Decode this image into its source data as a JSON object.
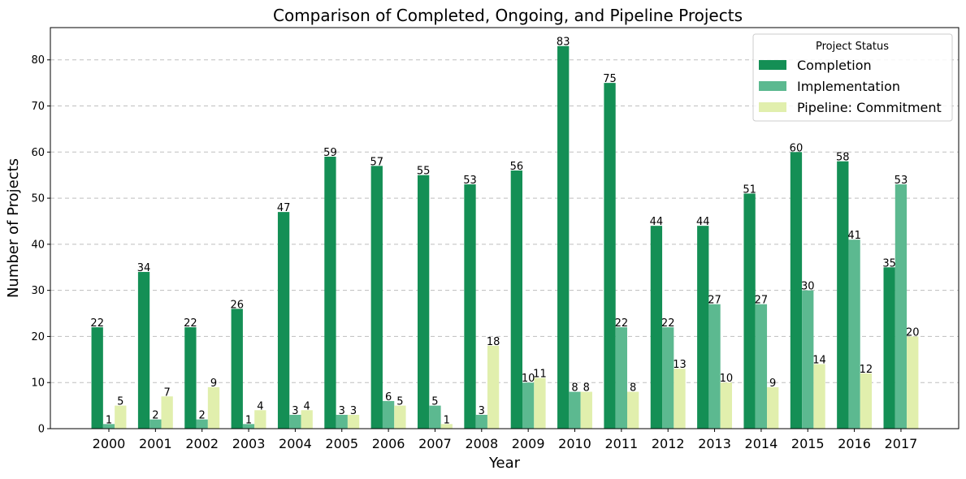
{
  "chart_data": {
    "type": "bar",
    "title": "Comparison of Completed, Ongoing, and Pipeline Projects",
    "xlabel": "Year",
    "ylabel": "Number of Projects",
    "categories": [
      "2000",
      "2001",
      "2002",
      "2003",
      "2004",
      "2005",
      "2006",
      "2007",
      "2008",
      "2009",
      "2010",
      "2011",
      "2012",
      "2013",
      "2014",
      "2015",
      "2016",
      "2017"
    ],
    "series": [
      {
        "name": "Completion",
        "color": "#148f55",
        "values": [
          22,
          34,
          22,
          26,
          47,
          59,
          57,
          55,
          53,
          56,
          83,
          75,
          44,
          44,
          51,
          60,
          58,
          35
        ]
      },
      {
        "name": "Implementation",
        "color": "#5cb990",
        "values": [
          1,
          2,
          2,
          1,
          3,
          3,
          6,
          5,
          3,
          10,
          8,
          22,
          22,
          27,
          27,
          30,
          41,
          53
        ]
      },
      {
        "name": "Pipeline: Commitment",
        "color": "#e1efad",
        "values": [
          5,
          7,
          9,
          4,
          4,
          3,
          5,
          1,
          18,
          11,
          8,
          8,
          13,
          10,
          9,
          14,
          12,
          20
        ]
      }
    ],
    "ylim": [
      0,
      87
    ],
    "yticks": [
      0,
      10,
      20,
      30,
      40,
      50,
      60,
      70,
      80
    ],
    "grid": "y-dashed",
    "legend": {
      "title": "Project Status",
      "placement": "top-right"
    }
  }
}
